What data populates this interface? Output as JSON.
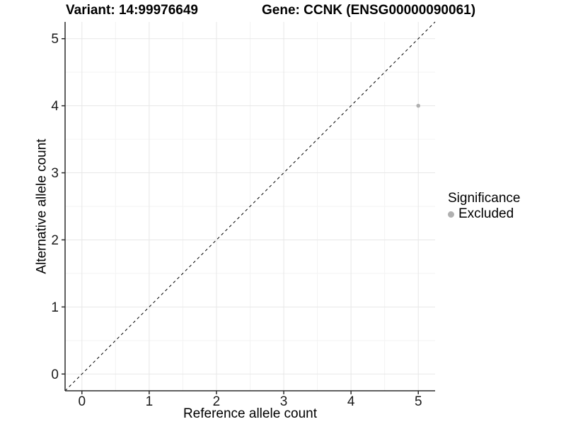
{
  "chart_data": {
    "type": "scatter",
    "title_left": "Variant: 14:99976649",
    "title_right": "Gene: CCNK (ENSG00000090061)",
    "xlabel": "Reference allele count",
    "ylabel": "Alternative allele count",
    "xlim": [
      -0.25,
      5.25
    ],
    "ylim": [
      -0.25,
      5.25
    ],
    "xticks": [
      0,
      1,
      2,
      3,
      4,
      5
    ],
    "yticks": [
      0,
      1,
      2,
      3,
      4,
      5
    ],
    "grid": true,
    "minor_grid": true,
    "identity_line": {
      "type": "dashed",
      "from": [
        -0.25,
        -0.25
      ],
      "to": [
        5.25,
        5.25
      ],
      "color": "#000000"
    },
    "series": [
      {
        "name": "Excluded",
        "color": "#b0b0b0",
        "point_radius": 2.8,
        "points": [
          {
            "x": 5,
            "y": 4
          }
        ]
      }
    ],
    "legend": {
      "title": "Significance",
      "position": "right",
      "entries": [
        {
          "label": "Excluded",
          "color": "#b0b0b0"
        }
      ]
    },
    "colors": {
      "panel_background": "#ffffff",
      "grid_major": "#e7e7e7",
      "grid_minor": "#f3f3f3",
      "axis_line": "#2b2b2b",
      "tick_mark": "#2b2b2b",
      "tick_label": "#1a1a1a",
      "text": "#000000"
    }
  }
}
